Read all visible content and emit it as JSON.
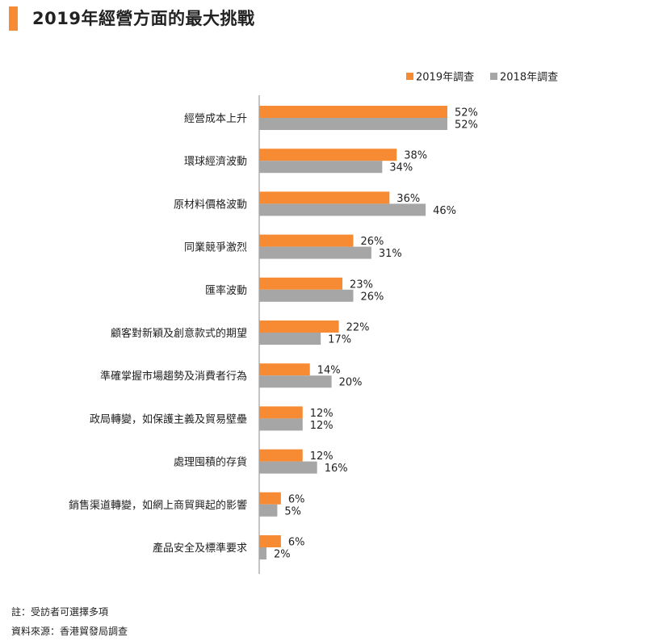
{
  "page": {
    "title": "2019年經營方面的最大挑戰"
  },
  "colors": {
    "accent": "#F68B33",
    "series2019": "#F68B33",
    "series2018": "#A6A6A6",
    "axis": "#888888"
  },
  "chart_data": {
    "type": "bar",
    "orientation": "horizontal",
    "title": "2019年經營方面的最大挑戰",
    "categories": [
      "經營成本上升",
      "環球經濟波動",
      "原材料價格波動",
      "同業競爭激烈",
      "匯率波動",
      "顧客對新穎及創意款式的期望",
      "準確掌握市場趨勢及消費者行為",
      "政局轉變，如保護主義及貿易壁壘",
      "處理囤積的存貨",
      "銷售渠道轉變，如網上商貿興起的影響",
      "產品安全及標準要求"
    ],
    "series": [
      {
        "name": "2019年調查",
        "values": [
          52,
          38,
          36,
          26,
          23,
          22,
          14,
          12,
          12,
          6,
          6
        ],
        "labels": [
          "52%",
          "38%",
          "36%",
          "26%",
          "23%",
          "22%",
          "14%",
          "12%",
          "12%",
          "6%",
          "6%"
        ]
      },
      {
        "name": "2018年調查",
        "values": [
          52,
          34,
          46,
          31,
          26,
          17,
          20,
          12,
          16,
          5,
          2
        ],
        "labels": [
          "52%",
          "34%",
          "46%",
          "31%",
          "26%",
          "17%",
          "20%",
          "12%",
          "16%",
          "5%",
          "2%"
        ]
      }
    ],
    "xlim": [
      0,
      60
    ],
    "legend": "top-right"
  },
  "notes": {
    "note": "註：受訪者可選擇多項",
    "source": "資料來源：香港貿發局調查"
  }
}
